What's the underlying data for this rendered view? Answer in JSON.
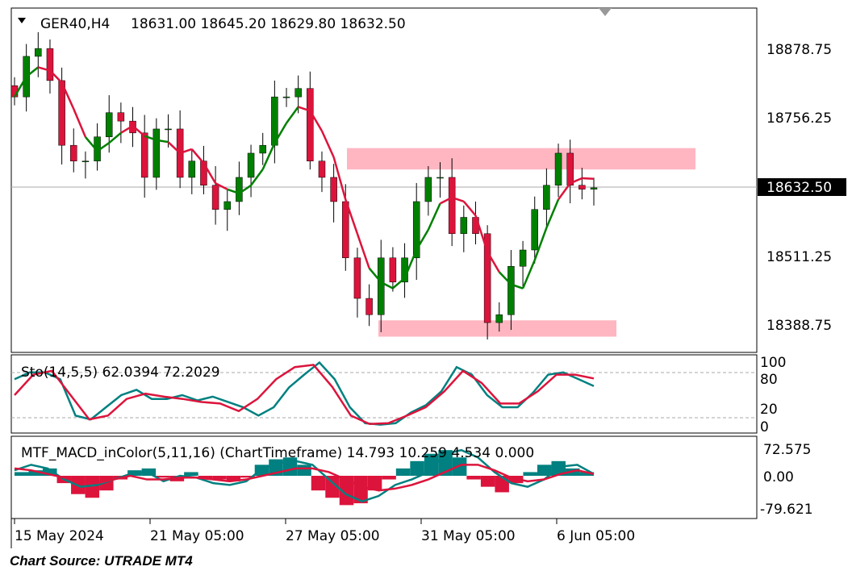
{
  "header": {
    "symbol": "GER40,H4",
    "ohlc": "18631.00 18645.20 18629.80 18632.50"
  },
  "price_axis": {
    "ticks": [
      "18878.75",
      "18756.25",
      "18511.25",
      "18388.75"
    ],
    "current": "18632.50"
  },
  "stoch": {
    "label": "Sto(14,5,5) 62.0394 72.2029",
    "levels": [
      "100",
      "80",
      "20",
      "0"
    ]
  },
  "macd": {
    "label": "MTF_MACD_inColor(5,11,16) (ChartTimeframe) 14.793 10.259 4.534 0.000",
    "ticks": [
      "72.575",
      "0.00",
      "-79.621"
    ]
  },
  "time_axis": [
    "15 May 2024",
    "21 May 05:00",
    "27 May 05:00",
    "31 May 05:00",
    "6 Jun 05:00"
  ],
  "source": "Chart Source: UTRADE MT4",
  "colors": {
    "bull": "#008000",
    "bear": "#dc143c",
    "zone": "#ffb6c1",
    "teal": "#008080",
    "red": "#dc143c"
  },
  "chart_data": {
    "type": "candlestick",
    "closes": [
      18794,
      18866,
      18880,
      18823,
      18708,
      18680,
      18680,
      18723,
      18766,
      18751,
      18730,
      18651,
      18737,
      18737,
      18651,
      18680,
      18637,
      18594,
      18608,
      18651,
      18694,
      18708,
      18794,
      18794,
      18809,
      18680,
      18651,
      18608,
      18508,
      18436,
      18407,
      18508,
      18465,
      18508,
      18608,
      18651,
      18651,
      18551,
      18580,
      18551,
      18393,
      18407,
      18493,
      18522,
      18594,
      18637,
      18694,
      18637,
      18630,
      18632.5
    ],
    "price_range": [
      18350,
      18950
    ],
    "zones": [
      [
        18665,
        18703
      ],
      [
        18368,
        18397
      ]
    ],
    "stoch_main": [
      71,
      80,
      80,
      71,
      23,
      18,
      34,
      50,
      57,
      45,
      45,
      50,
      43,
      48,
      41,
      34,
      23,
      34,
      60,
      77,
      93,
      71,
      34,
      13,
      11,
      13,
      27,
      37,
      55,
      87,
      77,
      50,
      34,
      34,
      53,
      77,
      80,
      71,
      62
    ],
    "stoch_signal": [
      50,
      77,
      82,
      50,
      18,
      23,
      45,
      52,
      48,
      45,
      41,
      39,
      29,
      45,
      71,
      87,
      90,
      61,
      23,
      12,
      13,
      23,
      34,
      55,
      82,
      66,
      39,
      39,
      55,
      77,
      77,
      72
    ],
    "macd_hist": [
      10,
      15,
      20,
      -20,
      -50,
      -60,
      -40,
      -10,
      15,
      20,
      -5,
      -15,
      10,
      -10,
      -10,
      -15,
      -5,
      30,
      45,
      50,
      30,
      -40,
      -60,
      -80,
      -75,
      -40,
      -10,
      20,
      40,
      60,
      70,
      50,
      -10,
      -30,
      -45,
      -20,
      10,
      30,
      40,
      20,
      10
    ],
    "macd_line": [
      15,
      30,
      20,
      -10,
      -30,
      -25,
      -10,
      5,
      10,
      -15,
      0,
      -5,
      -20,
      -25,
      -15,
      20,
      35,
      40,
      30,
      -10,
      -50,
      -70,
      -55,
      -25,
      -10,
      10,
      60,
      70,
      50,
      10,
      -20,
      -30,
      -10,
      25,
      30,
      5
    ],
    "macd_signal": [
      20,
      15,
      5,
      -5,
      -15,
      -20,
      -10,
      0,
      -10,
      -10,
      -5,
      -5,
      -10,
      -15,
      -10,
      0,
      10,
      20,
      20,
      10,
      -10,
      -30,
      -40,
      -35,
      -25,
      -10,
      10,
      30,
      30,
      15,
      -5,
      -15,
      -10,
      5,
      15,
      5
    ]
  }
}
